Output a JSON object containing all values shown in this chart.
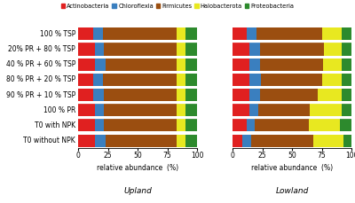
{
  "categories": [
    "100 % TSP",
    "20% PR + 80 % TSP",
    "40 % PR + 60 % TSP",
    "80 % PR + 20 % TSP",
    "90 % PR + 10 % TSP",
    "100 % PR",
    "T0 with NPK",
    "T0 without NPK"
  ],
  "legend_labels": [
    "Actinobacteria",
    "Chloroflexia",
    "Firmicutes",
    "Halobacterota",
    "Proteobacteria"
  ],
  "colors": [
    "#e02020",
    "#3a7fbf",
    "#9b4e10",
    "#e8e820",
    "#2d8a2d"
  ],
  "upland": [
    [
      13,
      8,
      62,
      7,
      10
    ],
    [
      14,
      8,
      61,
      7,
      10
    ],
    [
      14,
      9,
      60,
      7,
      10
    ],
    [
      13,
      8,
      62,
      7,
      10
    ],
    [
      13,
      9,
      61,
      7,
      10
    ],
    [
      14,
      8,
      61,
      7,
      10
    ],
    [
      14,
      8,
      61,
      7,
      10
    ],
    [
      14,
      9,
      60,
      7,
      10
    ]
  ],
  "lowland": [
    [
      12,
      8,
      55,
      17,
      8
    ],
    [
      14,
      9,
      54,
      15,
      8
    ],
    [
      14,
      9,
      53,
      16,
      8
    ],
    [
      14,
      10,
      51,
      17,
      8
    ],
    [
      14,
      9,
      49,
      20,
      8
    ],
    [
      14,
      8,
      43,
      27,
      8
    ],
    [
      12,
      7,
      45,
      26,
      10
    ],
    [
      8,
      8,
      52,
      25,
      7
    ]
  ],
  "xlabel": "relative abundance  (%)",
  "title1": "Upland",
  "title2": "Lowland",
  "xticks": [
    0,
    25,
    50,
    75,
    100
  ],
  "background": "#ffffff"
}
